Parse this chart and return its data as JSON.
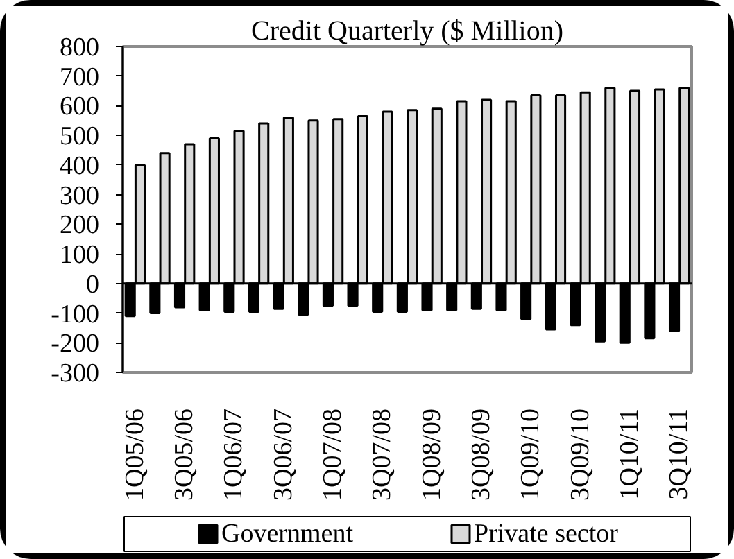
{
  "chart_data": {
    "type": "bar",
    "title": "Credit Quarterly ($ Million)",
    "categories": [
      "1Q05/06",
      null,
      "3Q05/06",
      null,
      "1Q06/07",
      null,
      "3Q06/07",
      null,
      "1Q07/08",
      null,
      "3Q07/08",
      null,
      "1Q08/09",
      null,
      "3Q08/09",
      null,
      "1Q09/10",
      null,
      "3Q09/10",
      null,
      "1Q10/11",
      null,
      "3Q10/11"
    ],
    "series": [
      {
        "name": "Government",
        "color": "#000000",
        "values": [
          -110,
          -100,
          -80,
          -90,
          -95,
          -95,
          -85,
          -105,
          -75,
          -75,
          -95,
          -95,
          -90,
          -90,
          -85,
          -90,
          -120,
          -155,
          -140,
          -195,
          -200,
          -185,
          -160
        ]
      },
      {
        "name": "Private sector",
        "color": "#d9d9d9",
        "values": [
          400,
          440,
          470,
          490,
          515,
          540,
          560,
          550,
          555,
          565,
          580,
          585,
          590,
          615,
          620,
          615,
          635,
          635,
          645,
          660,
          650,
          655,
          660
        ]
      }
    ],
    "ylim": [
      -300,
      800
    ],
    "yticks": [
      -300,
      -200,
      -100,
      0,
      100,
      200,
      300,
      400,
      500,
      600,
      700,
      800
    ],
    "ref_lines": [
      {
        "axis": "y",
        "value": 0,
        "color": "#000000"
      }
    ],
    "legend": "bottom"
  }
}
